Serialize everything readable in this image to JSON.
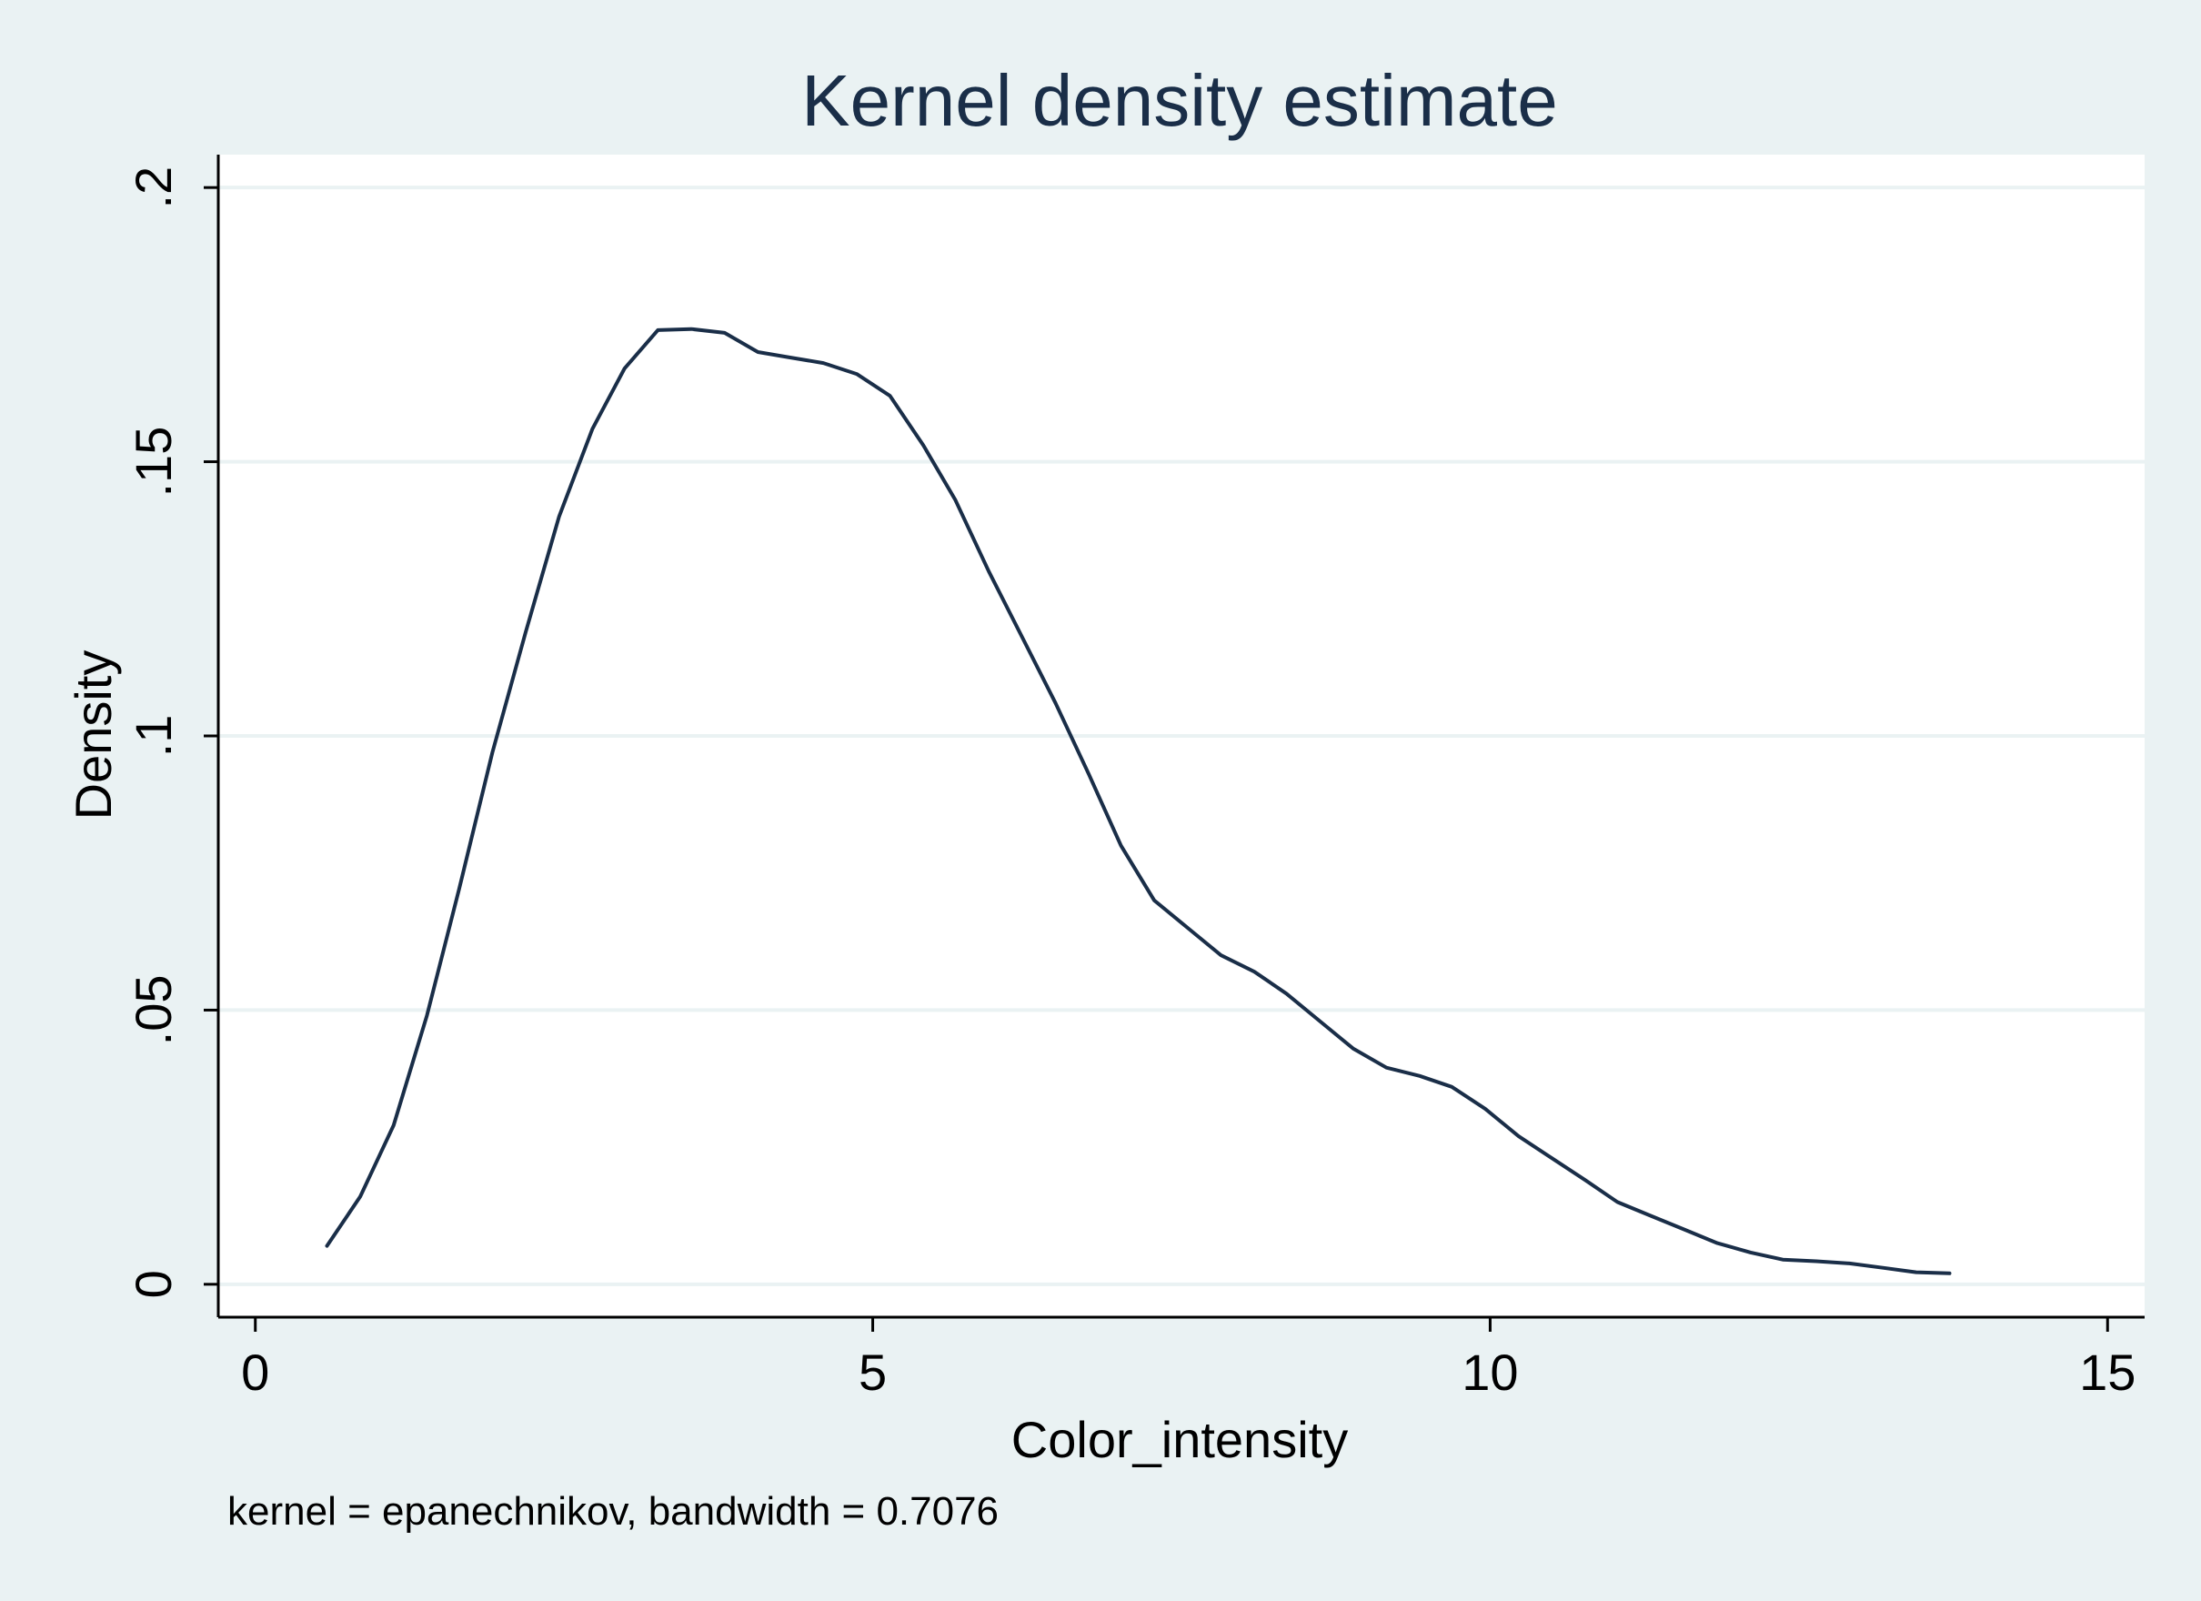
{
  "chart_data": {
    "type": "line",
    "title": "Kernel density estimate",
    "xlabel": "Color_intensity",
    "ylabel": "Density",
    "note": "kernel = epanechnikov, bandwidth = 0.7076",
    "xlim": [
      -0.3,
      15.3
    ],
    "ylim": [
      -0.006,
      0.206
    ],
    "xticks": [
      0,
      5,
      10,
      15
    ],
    "xtick_labels": [
      "0",
      "5",
      "10",
      "15"
    ],
    "yticks": [
      0,
      0.05,
      0.1,
      0.15,
      0.2
    ],
    "ytick_labels": [
      "0",
      ".05",
      ".1",
      ".15",
      ".2"
    ],
    "grid": "horizontal",
    "legend": "none",
    "colors": {
      "background": "#eaf2f3",
      "plot_background": "#ffffff",
      "gridline": "#eaf2f3",
      "line": "#1a2e48",
      "axis": "#000000",
      "title": "#1a2e48"
    },
    "series": [
      {
        "x": [
          0.58,
          0.85,
          1.12,
          1.39,
          1.65,
          1.92,
          2.19,
          2.46,
          2.73,
          2.99,
          3.26,
          3.53,
          3.8,
          4.07,
          4.33,
          4.6,
          4.87,
          5.14,
          5.41,
          5.67,
          5.94,
          6.21,
          6.48,
          6.75,
          7.01,
          7.28,
          7.55,
          7.82,
          8.09,
          8.35,
          8.62,
          8.89,
          9.16,
          9.43,
          9.69,
          9.96,
          10.23,
          10.5,
          10.77,
          11.03,
          11.3,
          11.57,
          11.84,
          12.11,
          12.37,
          12.64,
          12.91,
          13.18,
          13.45,
          13.72
        ],
        "y": [
          0.007,
          0.016,
          0.029,
          0.049,
          0.072,
          0.097,
          0.119,
          0.14,
          0.156,
          0.167,
          0.174,
          0.1742,
          0.1735,
          0.17,
          0.169,
          0.168,
          0.166,
          0.162,
          0.153,
          0.143,
          0.13,
          0.118,
          0.106,
          0.093,
          0.08,
          0.07,
          0.065,
          0.06,
          0.057,
          0.053,
          0.048,
          0.043,
          0.0395,
          0.038,
          0.036,
          0.032,
          0.027,
          0.023,
          0.019,
          0.015,
          0.0125,
          0.01,
          0.0075,
          0.0058,
          0.0045,
          0.0042,
          0.0038,
          0.003,
          0.0022,
          0.002
        ]
      }
    ]
  }
}
